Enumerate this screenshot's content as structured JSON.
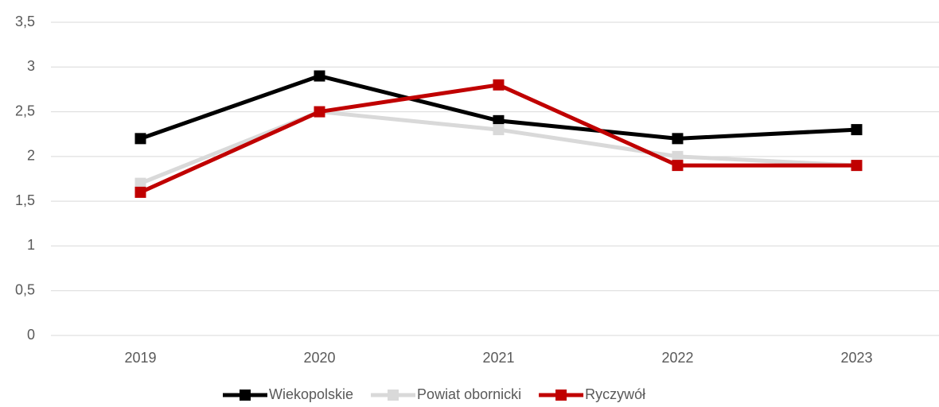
{
  "chart_data": {
    "type": "line",
    "categories": [
      "2019",
      "2020",
      "2021",
      "2022",
      "2023"
    ],
    "series": [
      {
        "name": "Wiekopolskie",
        "color": "#000000",
        "values": [
          2.2,
          2.9,
          2.4,
          2.2,
          2.3
        ]
      },
      {
        "name": "Powiat obornicki",
        "color": "#d9d9d9",
        "values": [
          1.7,
          2.5,
          2.3,
          2.0,
          1.9
        ]
      },
      {
        "name": "Ryczywół",
        "color": "#c00000",
        "values": [
          1.6,
          2.5,
          2.8,
          1.9,
          1.9
        ]
      }
    ],
    "ylim": [
      0,
      3.5
    ],
    "yticks": [
      0,
      {
        "value": 0.5,
        "label": "0,5"
      },
      1,
      {
        "value": 1.5,
        "label": "1,5"
      },
      2,
      {
        "value": 2.5,
        "label": "2,5"
      },
      3,
      {
        "value": 3.5,
        "label": "3,5"
      }
    ],
    "grid": true,
    "legend": "bottom"
  }
}
